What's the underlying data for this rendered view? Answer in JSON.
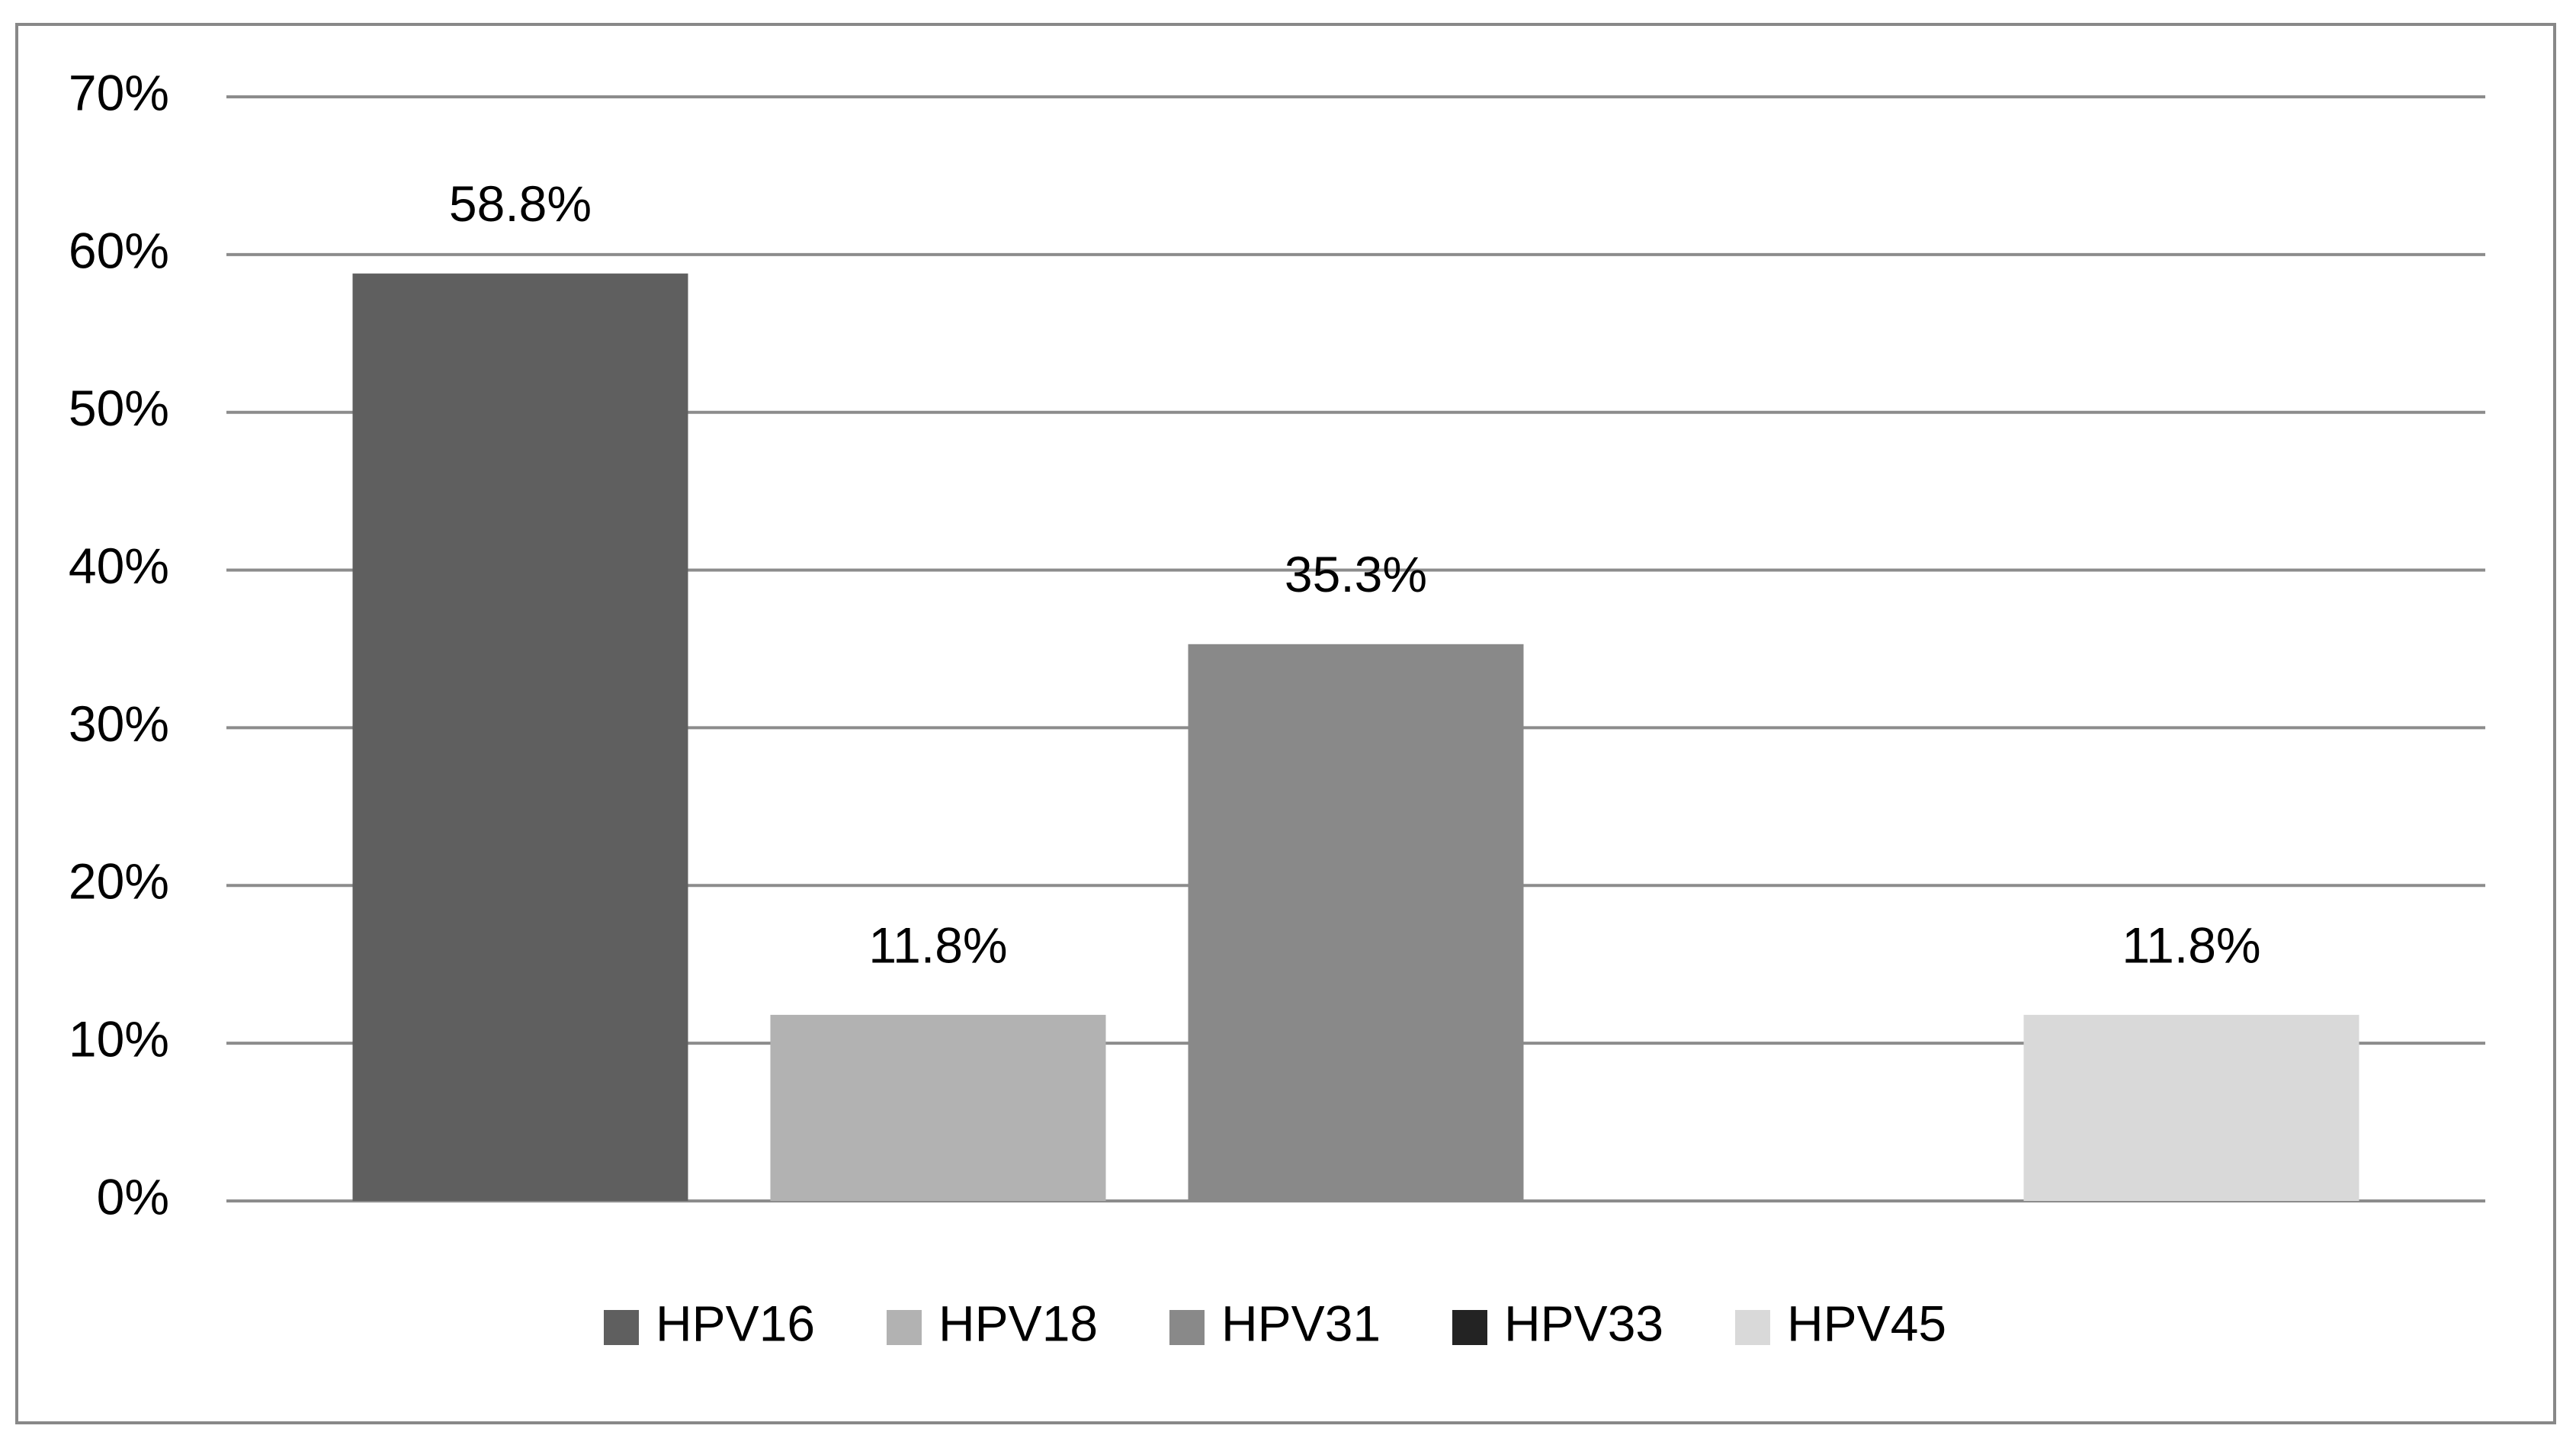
{
  "chart_data": {
    "type": "bar",
    "categories": [
      null
    ],
    "series": [
      {
        "name": "HPV16",
        "color": "#5f5f5f",
        "values": [
          58.8
        ],
        "value_labels": [
          "58.8%"
        ]
      },
      {
        "name": "HPV18",
        "color": "#b2b2b2",
        "values": [
          11.8
        ],
        "value_labels": [
          "11.8%"
        ]
      },
      {
        "name": "HPV31",
        "color": "#898989",
        "values": [
          35.3
        ],
        "value_labels": [
          "35.3%"
        ]
      },
      {
        "name": "HPV33",
        "color": "#232323",
        "values": [
          0
        ]
      },
      {
        "name": "HPV45",
        "color": "#d9d9d9",
        "values": [
          11.8
        ],
        "value_labels": [
          "11.8%"
        ]
      }
    ],
    "ylim": [
      0,
      70
    ],
    "yticks": [
      {
        "value": 0,
        "label": "0%"
      },
      {
        "value": 10,
        "label": "10%"
      },
      {
        "value": 20,
        "label": "20%"
      },
      {
        "value": 30,
        "label": "30%"
      },
      {
        "value": 40,
        "label": "40%"
      },
      {
        "value": 50,
        "label": "50%"
      },
      {
        "value": 60,
        "label": "60%"
      },
      {
        "value": 70,
        "label": "70%"
      }
    ],
    "grid": true,
    "legend": "bottom"
  }
}
